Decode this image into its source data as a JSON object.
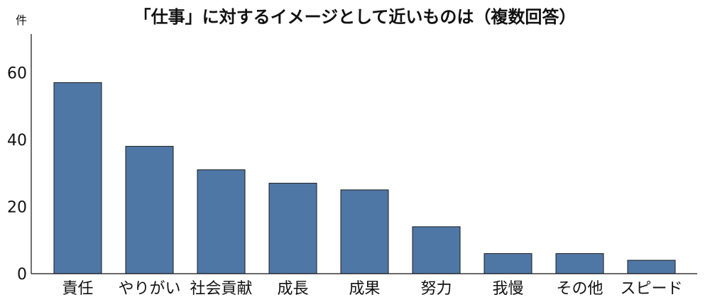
{
  "chart_data": {
    "type": "bar",
    "title": "「仕事」に対するイメージとして近いものは（複数回答）",
    "ylabel": "件",
    "xlabel": "",
    "categories": [
      "責任",
      "やりがい",
      "社会貢献",
      "成長",
      "成果",
      "努力",
      "我慢",
      "その他",
      "スピード"
    ],
    "values": [
      57,
      38,
      31,
      27,
      25,
      14,
      6,
      6,
      4
    ],
    "yticks": [
      0,
      20,
      40,
      60
    ],
    "ylim": [
      0,
      71.5
    ],
    "grid": false,
    "bar_color": "#4f77a6",
    "edge_color": "#1a1a1a"
  }
}
